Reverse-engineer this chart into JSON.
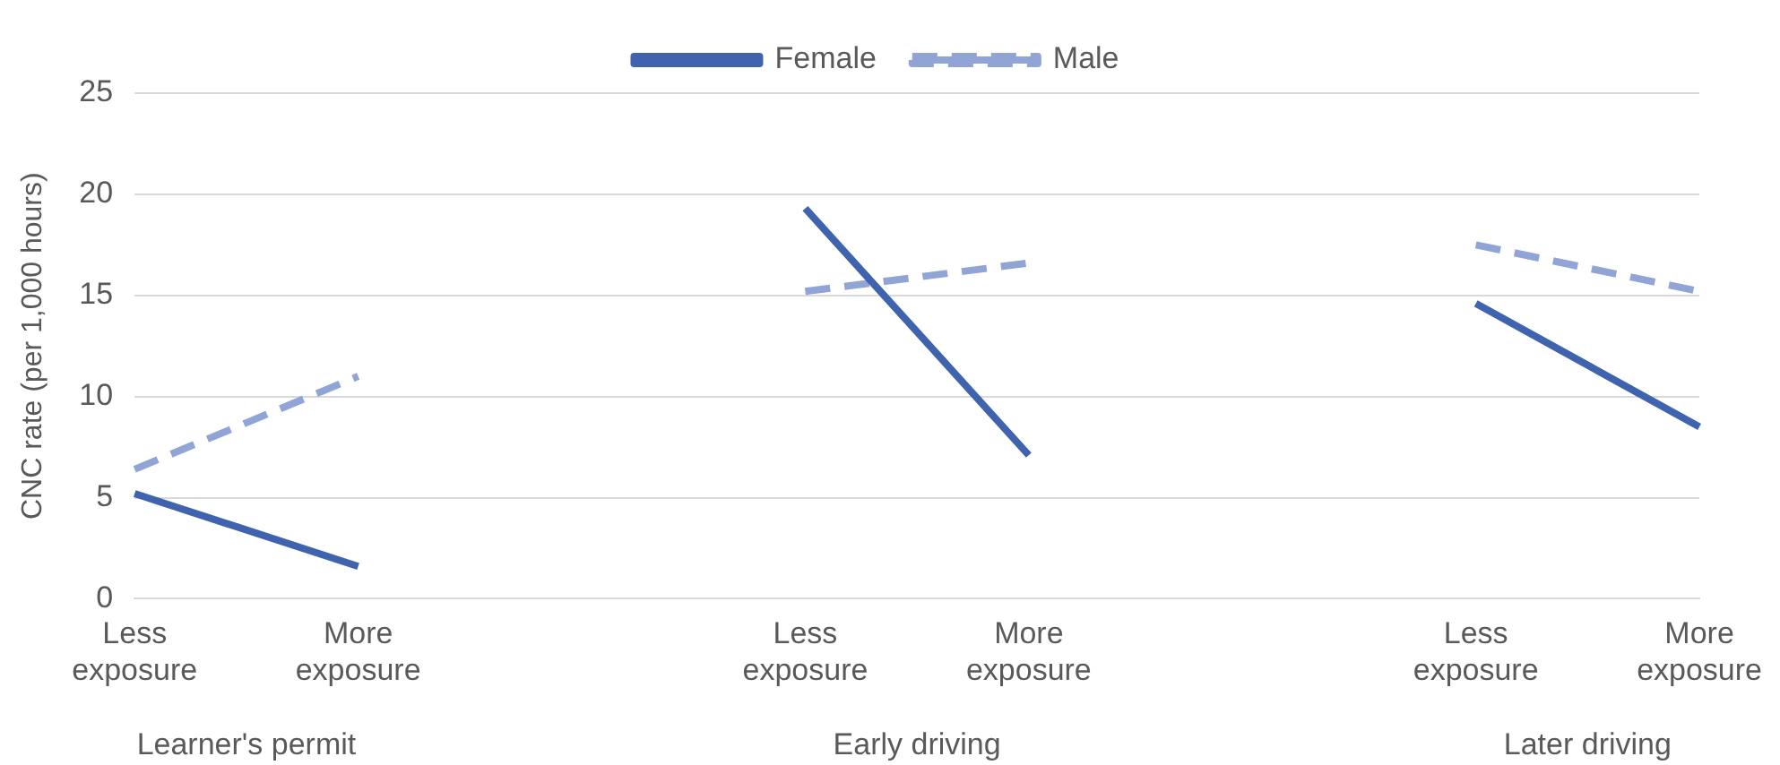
{
  "chart_data": {
    "type": "line",
    "ylabel": "CNC rate (per 1,000 hours)",
    "categories": [
      "Less exposure",
      "More exposure",
      null,
      "Less exposure",
      "More exposure",
      null,
      "Less exposure",
      "More exposure"
    ],
    "series": [
      {
        "name": "Female",
        "color": "#3f63ae",
        "line_style": "solid",
        "values": [
          5.2,
          1.6,
          null,
          19.3,
          7.1,
          null,
          14.6,
          8.5
        ]
      },
      {
        "name": "Male",
        "color": "#90a4d6",
        "line_style": "dashed",
        "values": [
          6.4,
          11.0,
          null,
          15.2,
          16.6,
          null,
          17.5,
          15.2
        ]
      }
    ],
    "annotations": [
      "Learner's permit",
      "Early driving",
      "Later driving"
    ],
    "ylim": [
      0,
      25
    ],
    "yticks": [
      0,
      5,
      10,
      15,
      20,
      25
    ],
    "grid": "y",
    "legend": "top",
    "marker": "none"
  }
}
